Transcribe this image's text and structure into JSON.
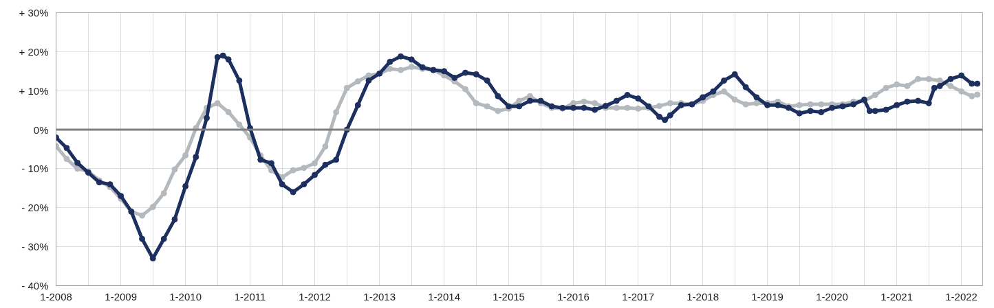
{
  "chart_data": {
    "type": "line",
    "marker": "circle",
    "line_style": "solid",
    "grid": true,
    "xlim": [
      "2008-01",
      "2022-05"
    ],
    "ylim": [
      -40,
      30
    ],
    "xticks": [
      {
        "value": "2008-01",
        "label": "1-2008"
      },
      {
        "value": "2008-07",
        "label": null
      },
      {
        "value": "2009-01",
        "label": "1-2009"
      },
      {
        "value": "2009-07",
        "label": null
      },
      {
        "value": "2010-01",
        "label": "1-2010"
      },
      {
        "value": "2010-07",
        "label": null
      },
      {
        "value": "2011-01",
        "label": "1-2011"
      },
      {
        "value": "2011-07",
        "label": null
      },
      {
        "value": "2012-01",
        "label": "1-2012"
      },
      {
        "value": "2012-07",
        "label": null
      },
      {
        "value": "2013-01",
        "label": "1-2013"
      },
      {
        "value": "2013-07",
        "label": null
      },
      {
        "value": "2014-01",
        "label": "1-2014"
      },
      {
        "value": "2014-07",
        "label": null
      },
      {
        "value": "2015-01",
        "label": "1-2015"
      },
      {
        "value": "2015-07",
        "label": null
      },
      {
        "value": "2016-01",
        "label": "1-2016"
      },
      {
        "value": "2016-07",
        "label": null
      },
      {
        "value": "2017-01",
        "label": "1-2017"
      },
      {
        "value": "2017-07",
        "label": null
      },
      {
        "value": "2018-01",
        "label": "1-2018"
      },
      {
        "value": "2018-07",
        "label": null
      },
      {
        "value": "2019-01",
        "label": "1-2019"
      },
      {
        "value": "2019-07",
        "label": null
      },
      {
        "value": "2020-01",
        "label": "1-2020"
      },
      {
        "value": "2020-07",
        "label": null
      },
      {
        "value": "2021-01",
        "label": "1-2021"
      },
      {
        "value": "2021-07",
        "label": null
      },
      {
        "value": "2022-01",
        "label": "1-2022"
      }
    ],
    "yticks": [
      {
        "value": 30,
        "label": "+ 30%"
      },
      {
        "value": 20,
        "label": "+ 20%"
      },
      {
        "value": 10,
        "label": "+ 10%"
      },
      {
        "value": 0,
        "label": "0%"
      },
      {
        "value": -10,
        "label": "- 10%"
      },
      {
        "value": -20,
        "label": "- 20%"
      },
      {
        "value": -30,
        "label": "- 30%"
      },
      {
        "value": -40,
        "label": "- 40%"
      }
    ],
    "ref_lines": [
      {
        "axis": "y",
        "value": 0,
        "color": "#808080"
      }
    ],
    "series": [
      {
        "color": "#b4b9be",
        "x": [
          "2008-01",
          "2008-03",
          "2008-05",
          "2008-07",
          "2008-09",
          "2008-11",
          "2009-01",
          "2009-03",
          "2009-05",
          "2009-07",
          "2009-09",
          "2009-11",
          "2010-01",
          "2010-03",
          "2010-05",
          "2010-07",
          "2010-09",
          "2010-11",
          "2011-01",
          "2011-03",
          "2011-05",
          "2011-07",
          "2011-09",
          "2011-11",
          "2012-01",
          "2012-03",
          "2012-05",
          "2012-07",
          "2012-09",
          "2012-11",
          "2013-01",
          "2013-03",
          "2013-05",
          "2013-07",
          "2013-09",
          "2013-11",
          "2014-01",
          "2014-03",
          "2014-05",
          "2014-07",
          "2014-09",
          "2014-11",
          "2015-01",
          "2015-03",
          "2015-05",
          "2015-07",
          "2015-09",
          "2015-11",
          "2016-01",
          "2016-03",
          "2016-05",
          "2016-07",
          "2016-09",
          "2016-11",
          "2017-01",
          "2017-03",
          "2017-05",
          "2017-07",
          "2017-09",
          "2017-11",
          "2018-01",
          "2018-03",
          "2018-05",
          "2018-07",
          "2018-09",
          "2018-11",
          "2019-01",
          "2019-03",
          "2019-05",
          "2019-07",
          "2019-09",
          "2019-11",
          "2020-01",
          "2020-03",
          "2020-05",
          "2020-07",
          "2020-09",
          "2020-11",
          "2021-01",
          "2021-03",
          "2021-05",
          "2021-07",
          "2021-09",
          "2021-11",
          "2022-01",
          "2022-03",
          "2022-04"
        ],
        "values": [
          -4.2,
          -7.5,
          -10,
          -10.7,
          -13,
          -14.7,
          -17.7,
          -21,
          -22,
          -19.8,
          -16.3,
          -10.2,
          -6.6,
          0.4,
          5.6,
          6.8,
          4.5,
          1.3,
          -2,
          -6.6,
          -10.4,
          -12.2,
          -10.4,
          -9.8,
          -8.6,
          -4.3,
          4.5,
          10.7,
          12.4,
          13.9,
          14.4,
          15.6,
          15.3,
          16.1,
          15.6,
          15.3,
          13.9,
          12.4,
          10.4,
          6.8,
          6,
          4.8,
          5.4,
          7.4,
          8.6,
          6.8,
          5.6,
          5.4,
          6.8,
          7.2,
          6.8,
          5.6,
          5.6,
          5.6,
          5.4,
          5.6,
          6.1,
          6.8,
          6.8,
          6.5,
          7.4,
          8.9,
          9.8,
          7.7,
          6.5,
          6.8,
          6.8,
          7.2,
          6,
          6.3,
          6.5,
          6.5,
          6.5,
          6.5,
          7.2,
          7.4,
          8.9,
          10.7,
          11.6,
          11.2,
          13,
          13,
          12.6,
          11.2,
          9.8,
          8.6,
          9
        ]
      },
      {
        "color": "#1c2f5e",
        "x": [
          "2008-01",
          "2008-03",
          "2008-05",
          "2008-07",
          "2008-09",
          "2008-11",
          "2009-01",
          "2009-03",
          "2009-05",
          "2009-07",
          "2009-09",
          "2009-11",
          "2010-01",
          "2010-03",
          "2010-05",
          "2010-07",
          "2010-08",
          "2010-09",
          "2010-11",
          "2011-01",
          "2011-03",
          "2011-05",
          "2011-07",
          "2011-09",
          "2011-11",
          "2012-01",
          "2012-03",
          "2012-05",
          "2012-07",
          "2012-09",
          "2012-11",
          "2013-01",
          "2013-03",
          "2013-05",
          "2013-07",
          "2013-09",
          "2013-11",
          "2014-01",
          "2014-03",
          "2014-05",
          "2014-07",
          "2014-09",
          "2014-11",
          "2015-01",
          "2015-03",
          "2015-05",
          "2015-07",
          "2015-09",
          "2015-11",
          "2016-01",
          "2016-03",
          "2016-05",
          "2016-07",
          "2016-09",
          "2016-11",
          "2017-01",
          "2017-03",
          "2017-05",
          "2017-06",
          "2017-07",
          "2017-09",
          "2017-11",
          "2018-01",
          "2018-03",
          "2018-05",
          "2018-07",
          "2018-09",
          "2018-11",
          "2019-01",
          "2019-03",
          "2019-05",
          "2019-07",
          "2019-09",
          "2019-11",
          "2020-01",
          "2020-03",
          "2020-05",
          "2020-07",
          "2020-08",
          "2020-09",
          "2020-11",
          "2021-01",
          "2021-03",
          "2021-05",
          "2021-07",
          "2021-08",
          "2021-09",
          "2021-11",
          "2022-01",
          "2022-03",
          "2022-04"
        ],
        "values": [
          -2,
          -4.7,
          -8.5,
          -11,
          -13.5,
          -14,
          -17,
          -21,
          -28,
          -33,
          -28,
          -23,
          -14.5,
          -7,
          3,
          18.6,
          19,
          18,
          12.6,
          0.4,
          -7.7,
          -8.6,
          -14,
          -16,
          -14,
          -11.6,
          -9,
          -7.7,
          0,
          6.3,
          12.6,
          14.4,
          17.4,
          18.8,
          18,
          16,
          15.3,
          15,
          13.3,
          14.6,
          14.2,
          12.6,
          8.6,
          6,
          6,
          7.4,
          7.4,
          6,
          5.6,
          5.6,
          5.6,
          5.1,
          6.1,
          7.4,
          8.9,
          8,
          6,
          3.3,
          2.5,
          3.7,
          6.3,
          6.5,
          8.3,
          9.8,
          12.6,
          14.2,
          10.9,
          8.3,
          6.3,
          6.3,
          5.6,
          4.2,
          4.8,
          4.5,
          5.6,
          6,
          6.5,
          7.7,
          4.8,
          4.8,
          5.1,
          6.3,
          7.2,
          7.4,
          6.8,
          10.7,
          11.2,
          13,
          13.9,
          11.8,
          11.8
        ]
      }
    ]
  }
}
